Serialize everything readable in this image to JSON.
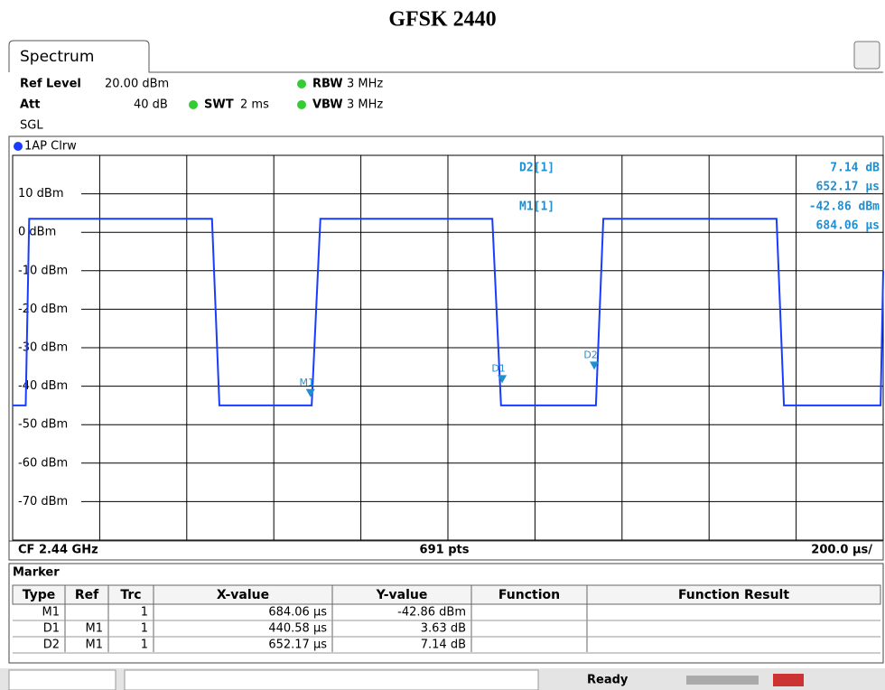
{
  "title": "GFSK 2440",
  "tab": "Spectrum",
  "settings": {
    "ref_level_label": "Ref Level",
    "ref_level": "20.00 dBm",
    "att_label": "Att",
    "att": "40 dB",
    "swt_label": "SWT",
    "swt": "2 ms",
    "rbw_label": "RBW",
    "rbw": "3 MHz",
    "vbw_label": "VBW",
    "vbw": "3 MHz",
    "mode": "SGL"
  },
  "trace_label": "1AP Clrw",
  "chart_data": {
    "type": "line",
    "xlim": [
      0,
      2000
    ],
    "ylim": [
      -80,
      20
    ],
    "yticks": [
      {
        "value": 10,
        "label": "10 dBm"
      },
      {
        "value": 0,
        "label": "0 dBm"
      },
      {
        "value": -10,
        "label": "-10 dBm"
      },
      {
        "value": -20,
        "label": "-20 dBm"
      },
      {
        "value": -30,
        "label": "-30 dBm"
      },
      {
        "value": -40,
        "label": "-40 dBm"
      },
      {
        "value": -50,
        "label": "-50 dBm"
      },
      {
        "value": -60,
        "label": "-60 dBm"
      },
      {
        "value": -70,
        "label": "-70 dBm"
      }
    ],
    "grid": true,
    "series": [
      {
        "color": "#1a3cff",
        "x": [
          0,
          30,
          38,
          458,
          475,
          687,
          707,
          1102,
          1122,
          1340,
          1357,
          1755,
          1772,
          1994,
          2000
        ],
        "values": [
          -45,
          -45,
          3.5,
          3.5,
          -45,
          -45,
          3.5,
          3.5,
          -45,
          -45,
          3.5,
          3.5,
          -45,
          -45,
          -10
        ]
      }
    ],
    "markers": [
      {
        "label": "M1",
        "x": 684.06,
        "y": -42.86
      },
      {
        "label": "D1",
        "x": 1124.64,
        "y": -39.23
      },
      {
        "label": "D2",
        "x": 1336.23,
        "y": -35.72
      }
    ],
    "readouts": [
      {
        "name": "D2[1]",
        "lines": [
          "7.14 dB",
          "652.17 µs"
        ]
      },
      {
        "name": "M1[1]",
        "lines": [
          "-42.86 dBm",
          "684.06 µs"
        ]
      }
    ],
    "footer": {
      "left": "CF 2.44 GHz",
      "center": "691 pts",
      "right": "200.0 µs/"
    }
  },
  "marker_table": {
    "title": "Marker",
    "columns": [
      "Type",
      "Ref",
      "Trc",
      "X-value",
      "Y-value",
      "Function",
      "Function Result"
    ],
    "rows": [
      {
        "type": "M1",
        "trc": 1,
        "x_value": "684.06 µs",
        "y_value": "-42.86 dBm"
      },
      {
        "type": "D1",
        "ref": "M1",
        "trc": 1,
        "x_value": "440.58 µs",
        "y_value": "3.63 dB"
      },
      {
        "type": "D2",
        "ref": "M1",
        "trc": 1,
        "x_value": "652.17 µs",
        "y_value": "7.14 dB"
      }
    ]
  },
  "status": "Ready"
}
